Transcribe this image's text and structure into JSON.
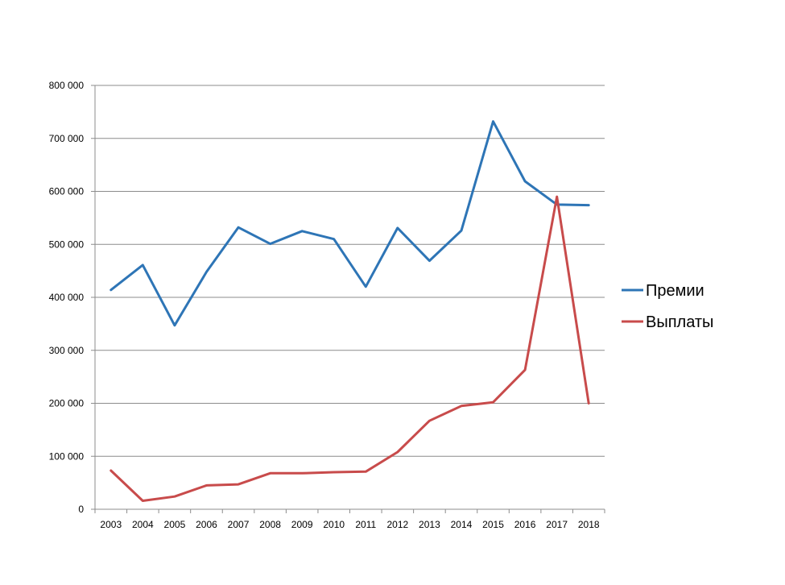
{
  "chart_data": {
    "type": "line",
    "categories": [
      "2003",
      "2004",
      "2005",
      "2006",
      "2007",
      "2008",
      "2009",
      "2010",
      "2011",
      "2012",
      "2013",
      "2014",
      "2015",
      "2016",
      "2017",
      "2018"
    ],
    "series": [
      {
        "name": "Премии",
        "color": "#2E75B6",
        "values": [
          414000,
          461000,
          347000,
          448000,
          532000,
          501000,
          525000,
          510000,
          420000,
          531000,
          469000,
          526000,
          732000,
          619000,
          575000,
          574000
        ]
      },
      {
        "name": "Выплаты",
        "color": "#C84B4B",
        "values": [
          73000,
          16000,
          24000,
          45000,
          47000,
          68000,
          68000,
          70000,
          71000,
          108000,
          167000,
          195000,
          202000,
          263000,
          590000,
          200000
        ]
      }
    ],
    "yticks": [
      "0",
      "100 000",
      "200 000",
      "300 000",
      "400 000",
      "500 000",
      "600 000",
      "700 000",
      "800 000"
    ],
    "ylim": [
      0,
      800000
    ],
    "grid": true,
    "legend": "right"
  }
}
